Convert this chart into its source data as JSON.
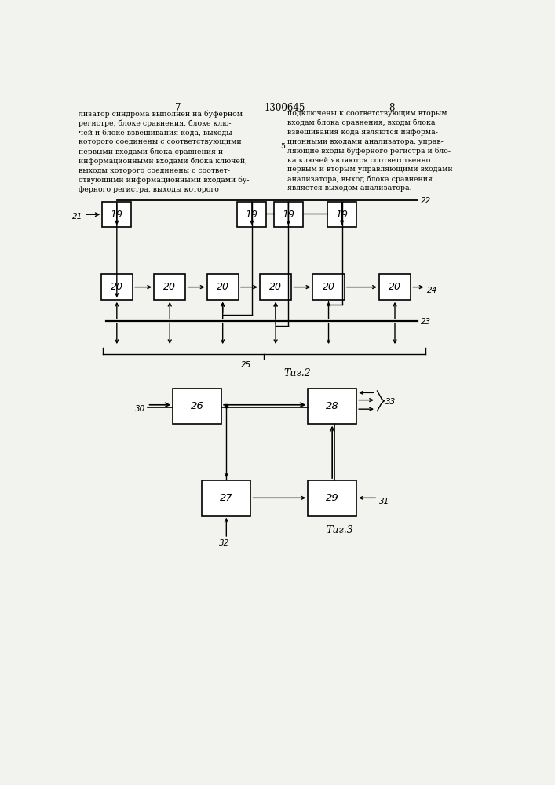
{
  "page_title": "1300645",
  "page_num_left": "7",
  "page_num_right": "8",
  "text_left": "лизатор синдрома выполнен на буферном\nрегистре, блоке сравнения, блоке клю-\nчей и блоке взвешивания кода, выходы\nкоторого соединены с соответствующими\nпервыми входами блока сравнения и\nинформационными входами блока ключей,\nвыходы которого соединены с соответ-\nствующими информационными входами бу-\nферного регистра, выходы которого",
  "text_right": "подключены к соответствующим вторым\nвходам блока сравнения, входы блока\nвзвешивания кода являются информа-\nционными входами анализатора, управ-\nляющие входы буферного регистра и бло-\nка ключей являются соответственно\nпервым и вторым управляющими входами\nанализатора, выход блока сравнения\nявляется выходом анализатора.",
  "line_num_5": "5",
  "fig2_label": "Τиг.2",
  "fig3_label": "Τиг.3",
  "bg_color": "#f2f2ee"
}
